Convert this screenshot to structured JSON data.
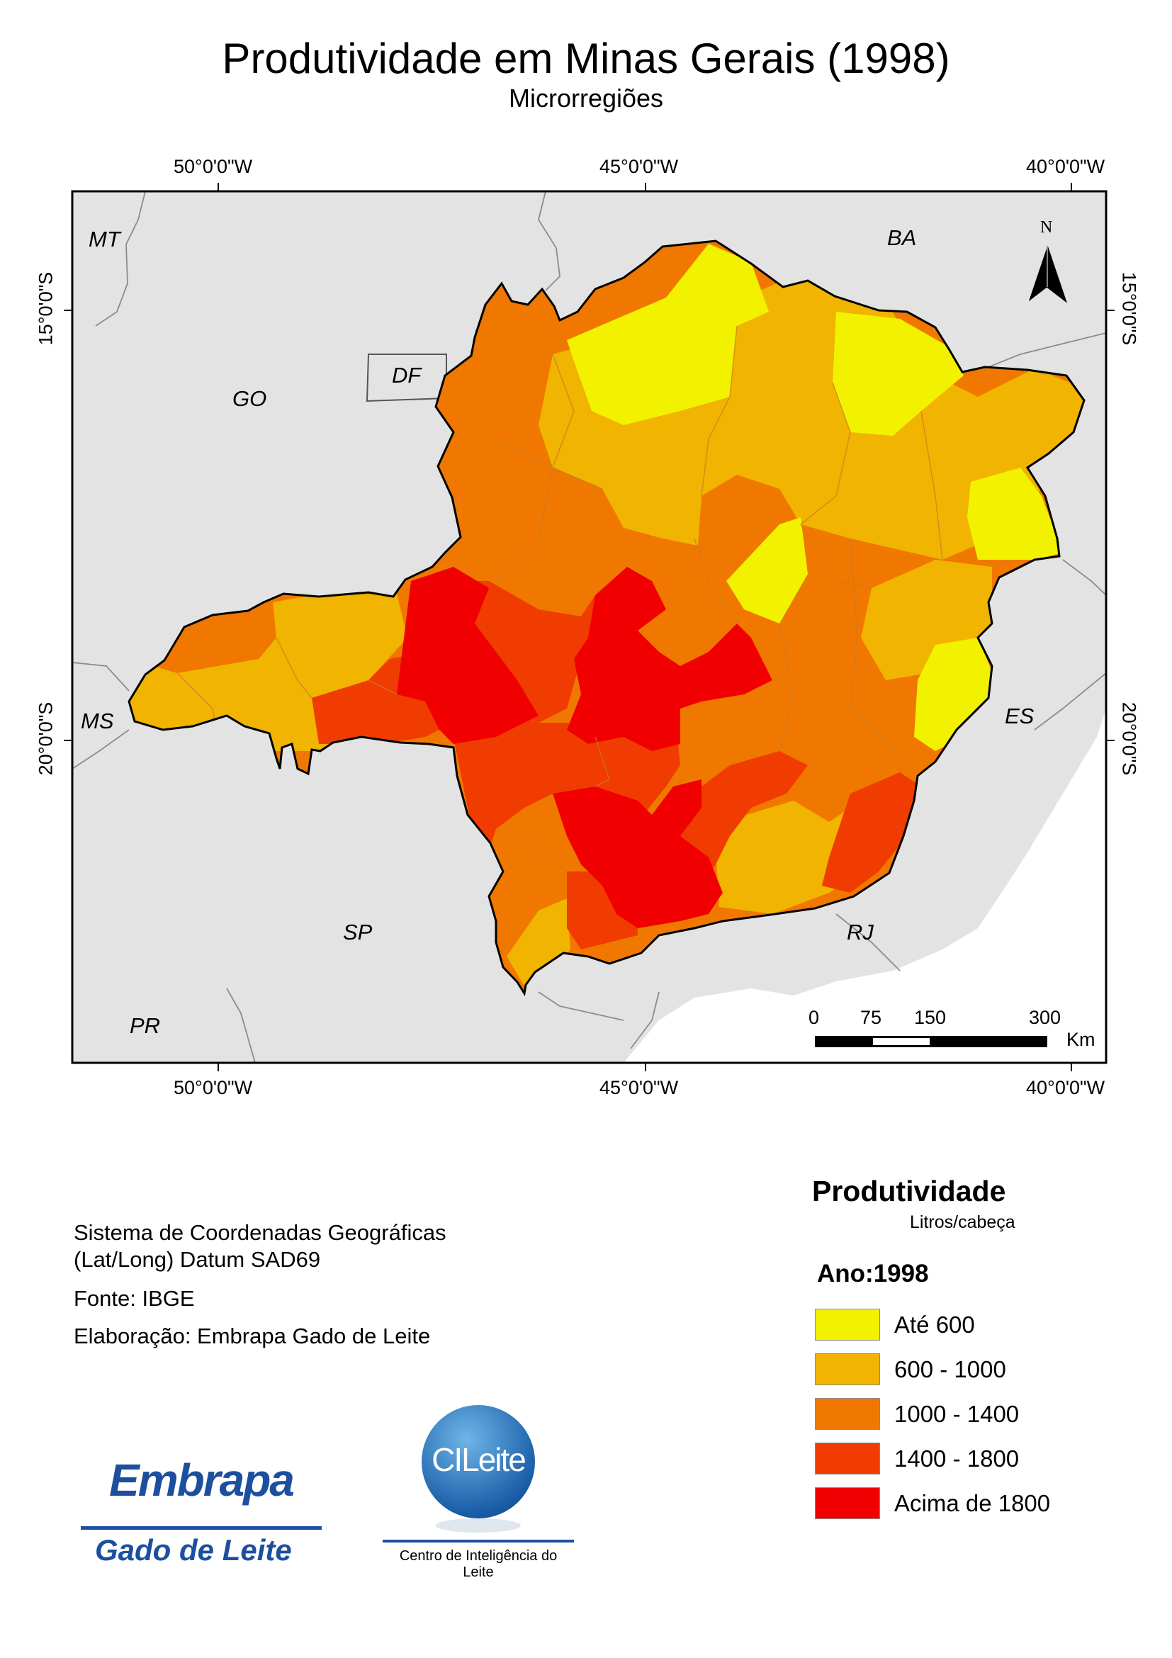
{
  "title": "Produtividade em Minas Gerais (1998)",
  "subtitle": "Microrregiões",
  "graticule": {
    "lon_top": [
      "50°0'0\"W",
      "45°0'0\"W",
      "40°0'0\"W"
    ],
    "lon_bottom": [
      "50°0'0\"W",
      "45°0'0\"W",
      "40°0'0\"W"
    ],
    "lat_left": [
      "15°0'0\"S",
      "20°0'0\"S"
    ],
    "lat_right": [
      "15°0'0\"S",
      "20°0'0\"S"
    ]
  },
  "states": {
    "mt": "MT",
    "go": "GO",
    "df": "DF",
    "ba": "BA",
    "ms": "MS",
    "es": "ES",
    "sp": "SP",
    "rj": "RJ",
    "pr": "PR"
  },
  "north_arrow": "N",
  "scalebar": {
    "ticks": [
      "0",
      "75",
      "150",
      "300"
    ],
    "unit": "Km"
  },
  "info": {
    "crs_line1": "Sistema de Coordenadas Geográficas",
    "crs_line2": "(Lat/Long) Datum SAD69",
    "source": "Fonte: IBGE",
    "author": "Elaboração: Embrapa Gado de Leite"
  },
  "legend": {
    "title": "Produtividade",
    "unit": "Litros/cabeça",
    "year": "Ano:1998",
    "classes": [
      {
        "label": "Até 600",
        "color": "#f2f200"
      },
      {
        "label": "600 - 1000",
        "color": "#f1b400"
      },
      {
        "label": "1000 - 1400",
        "color": "#f07800"
      },
      {
        "label": "1400 - 1800",
        "color": "#f03c00"
      },
      {
        "label": "Acima de 1800",
        "color": "#f00000"
      }
    ]
  },
  "logos": {
    "embrapa_word": "Embrapa",
    "embrapa_sub": "Gado de Leite",
    "cileite_word": "CILeite",
    "cileite_sub": "Centro de Inteligência do Leite"
  }
}
